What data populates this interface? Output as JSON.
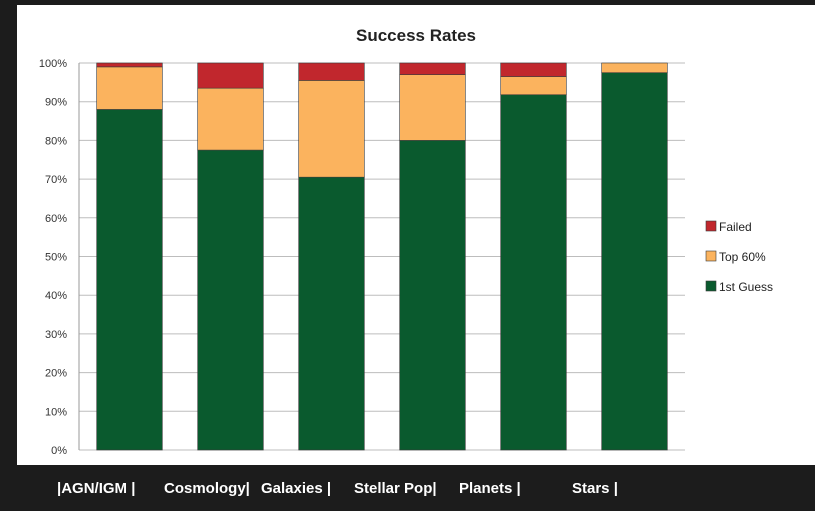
{
  "chart_data": {
    "type": "bar",
    "stacked": true,
    "title": "Success Rates",
    "xlabel": "",
    "ylabel": "",
    "ylim": [
      0,
      100
    ],
    "y_ticks": [
      "0%",
      "10%",
      "20%",
      "30%",
      "40%",
      "50%",
      "60%",
      "70%",
      "80%",
      "90%",
      "100%"
    ],
    "grid": true,
    "legend_position": "right",
    "categories": [
      "AGN/IGM",
      "Cosmology",
      "Galaxies",
      "Stellar Pop",
      "Planets",
      "Stars"
    ],
    "series": [
      {
        "name": "1st Guess",
        "color": "#0a5a2e",
        "values": [
          88,
          77.5,
          70.5,
          80,
          91.8,
          97.5
        ]
      },
      {
        "name": "Top 60%",
        "color": "#fbb35e",
        "values": [
          11,
          16,
          25,
          17,
          4.7,
          2.5
        ]
      },
      {
        "name": "Failed",
        "color": "#c1272d",
        "values": [
          1,
          6.5,
          4.5,
          3,
          3.5,
          0
        ]
      }
    ]
  },
  "category_strip": {
    "labels": [
      "|AGN/IGM |",
      "Cosmology|",
      "Galaxies |",
      "Stellar Pop|",
      "Planets |",
      "Stars |"
    ]
  }
}
